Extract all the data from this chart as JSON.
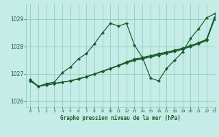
{
  "title": "Graphe pression niveau de la mer (hPa)",
  "background_color": "#c5ece6",
  "grid_color": "#8fccc4",
  "line_color": "#1a5c2a",
  "xlim": [
    -0.5,
    23
  ],
  "ylim": [
    1025.8,
    1029.55
  ],
  "yticks": [
    1026,
    1027,
    1028,
    1029
  ],
  "xticks": [
    0,
    1,
    2,
    3,
    4,
    5,
    6,
    7,
    8,
    9,
    10,
    11,
    12,
    13,
    14,
    15,
    16,
    17,
    18,
    19,
    20,
    21,
    22,
    23
  ],
  "series1_x": [
    0,
    1,
    2,
    3,
    4,
    5,
    6,
    7,
    8,
    9,
    10,
    11,
    12,
    13,
    14,
    15,
    16,
    17,
    18,
    19,
    20,
    21,
    22,
    23
  ],
  "series1_y": [
    1026.8,
    1026.55,
    1026.65,
    1026.7,
    1027.05,
    1027.25,
    1027.55,
    1027.75,
    1028.1,
    1028.5,
    1028.85,
    1028.75,
    1028.85,
    1028.05,
    1027.6,
    1026.85,
    1026.75,
    1027.2,
    1027.5,
    1027.8,
    1028.3,
    1028.65,
    1029.05,
    1029.2
  ],
  "series2_x": [
    0,
    1,
    2,
    3,
    4,
    5,
    6,
    7,
    8,
    9,
    10,
    11,
    12,
    13,
    14,
    15,
    16,
    17,
    18,
    19,
    20,
    21,
    22,
    23
  ],
  "series2_y": [
    1026.75,
    1026.55,
    1026.6,
    1026.65,
    1026.7,
    1026.75,
    1026.82,
    1026.9,
    1027.0,
    1027.1,
    1027.2,
    1027.3,
    1027.4,
    1027.5,
    1027.55,
    1027.62,
    1027.68,
    1027.75,
    1027.82,
    1027.9,
    1028.0,
    1028.1,
    1028.22,
    1029.0
  ],
  "series3_x": [
    0,
    1,
    2,
    3,
    4,
    5,
    6,
    7,
    8,
    9,
    10,
    11,
    12,
    13,
    14,
    15,
    16,
    17,
    18,
    19,
    20,
    21,
    22,
    23
  ],
  "series3_y": [
    1026.75,
    1026.55,
    1026.6,
    1026.65,
    1026.7,
    1026.75,
    1026.82,
    1026.9,
    1027.0,
    1027.1,
    1027.2,
    1027.3,
    1027.42,
    1027.52,
    1027.58,
    1027.65,
    1027.72,
    1027.78,
    1027.85,
    1027.92,
    1028.02,
    1028.12,
    1028.25,
    1029.08
  ],
  "series4_x": [
    0,
    1,
    2,
    3,
    4,
    5,
    6,
    7,
    8,
    9,
    10,
    11,
    12,
    13,
    14,
    15,
    16,
    17,
    18,
    19,
    20,
    21,
    22,
    23
  ],
  "series4_y": [
    1026.75,
    1026.55,
    1026.6,
    1026.65,
    1026.7,
    1026.75,
    1026.82,
    1026.9,
    1027.0,
    1027.1,
    1027.2,
    1027.32,
    1027.44,
    1027.54,
    1027.6,
    1027.67,
    1027.74,
    1027.8,
    1027.87,
    1027.94,
    1028.04,
    1028.14,
    1028.27,
    1029.05
  ]
}
